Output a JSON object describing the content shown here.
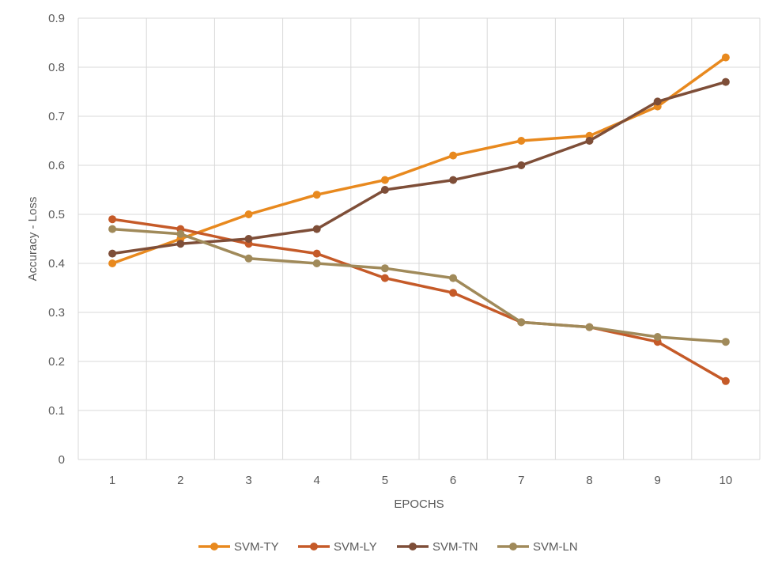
{
  "chart_data": {
    "type": "line",
    "title": "",
    "xlabel": "EPOCHS",
    "ylabel": "Accuracy - Loss",
    "categories": [
      "1",
      "2",
      "3",
      "4",
      "5",
      "6",
      "7",
      "8",
      "9",
      "10"
    ],
    "ylim": [
      0,
      0.9
    ],
    "yticks": [
      "0",
      "0.1",
      "0.2",
      "0.3",
      "0.4",
      "0.5",
      "0.6",
      "0.7",
      "0.8",
      "0.9"
    ],
    "grid": true,
    "legend_position": "bottom",
    "series": [
      {
        "name": "SVM-TY",
        "color": "#E8891E",
        "values": [
          0.4,
          0.45,
          0.5,
          0.54,
          0.57,
          0.62,
          0.65,
          0.66,
          0.72,
          0.82
        ]
      },
      {
        "name": "SVM-LY",
        "color": "#C55A28",
        "values": [
          0.49,
          0.47,
          0.44,
          0.42,
          0.37,
          0.34,
          0.28,
          0.27,
          0.24,
          0.16
        ]
      },
      {
        "name": "SVM-TN",
        "color": "#7E4E38",
        "values": [
          0.42,
          0.44,
          0.45,
          0.47,
          0.55,
          0.57,
          0.6,
          0.65,
          0.73,
          0.77
        ]
      },
      {
        "name": "SVM-LN",
        "color": "#A08A5A",
        "values": [
          0.47,
          0.46,
          0.41,
          0.4,
          0.39,
          0.37,
          0.28,
          0.27,
          0.25,
          0.24
        ]
      }
    ]
  }
}
